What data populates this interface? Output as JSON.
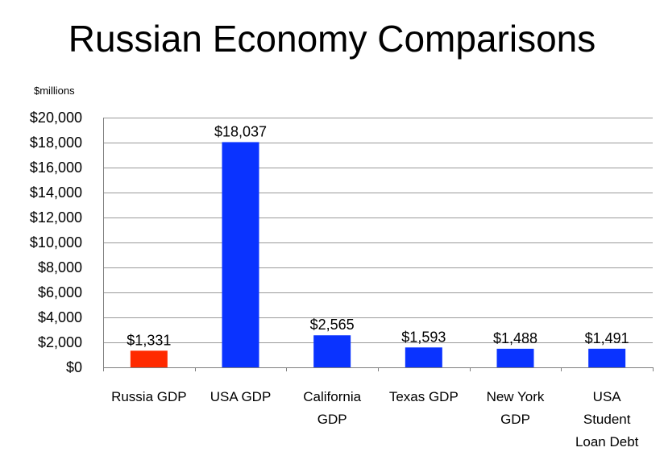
{
  "chart_data": {
    "type": "bar",
    "title": "Russian Economy Comparisons",
    "unit_label": "$millions",
    "categories": [
      [
        "Russia GDP"
      ],
      [
        "USA GDP"
      ],
      [
        "California",
        "GDP"
      ],
      [
        "Texas GDP"
      ],
      [
        "New York",
        "GDP"
      ],
      [
        "USA",
        "Student",
        "Loan Debt"
      ]
    ],
    "values": [
      1331,
      18037,
      2565,
      1593,
      1488,
      1491
    ],
    "value_labels": [
      "$1,331",
      "$18,037",
      "$2,565",
      "$1,593",
      "$1,488",
      "$1,491"
    ],
    "bar_colors": [
      "#ff2a00",
      "#0a33ff",
      "#0a33ff",
      "#0a33ff",
      "#0a33ff",
      "#0a33ff"
    ],
    "ylim": [
      0,
      20000
    ],
    "yticks": [
      0,
      2000,
      4000,
      6000,
      8000,
      10000,
      12000,
      14000,
      16000,
      18000,
      20000
    ],
    "ytick_labels": [
      "$0",
      "$2,000",
      "$4,000",
      "$6,000",
      "$8,000",
      "$10,000",
      "$12,000",
      "$14,000",
      "$16,000",
      "$18,000",
      "$20,000"
    ],
    "xlabel": "",
    "ylabel": "",
    "grid": true,
    "legend": false
  }
}
